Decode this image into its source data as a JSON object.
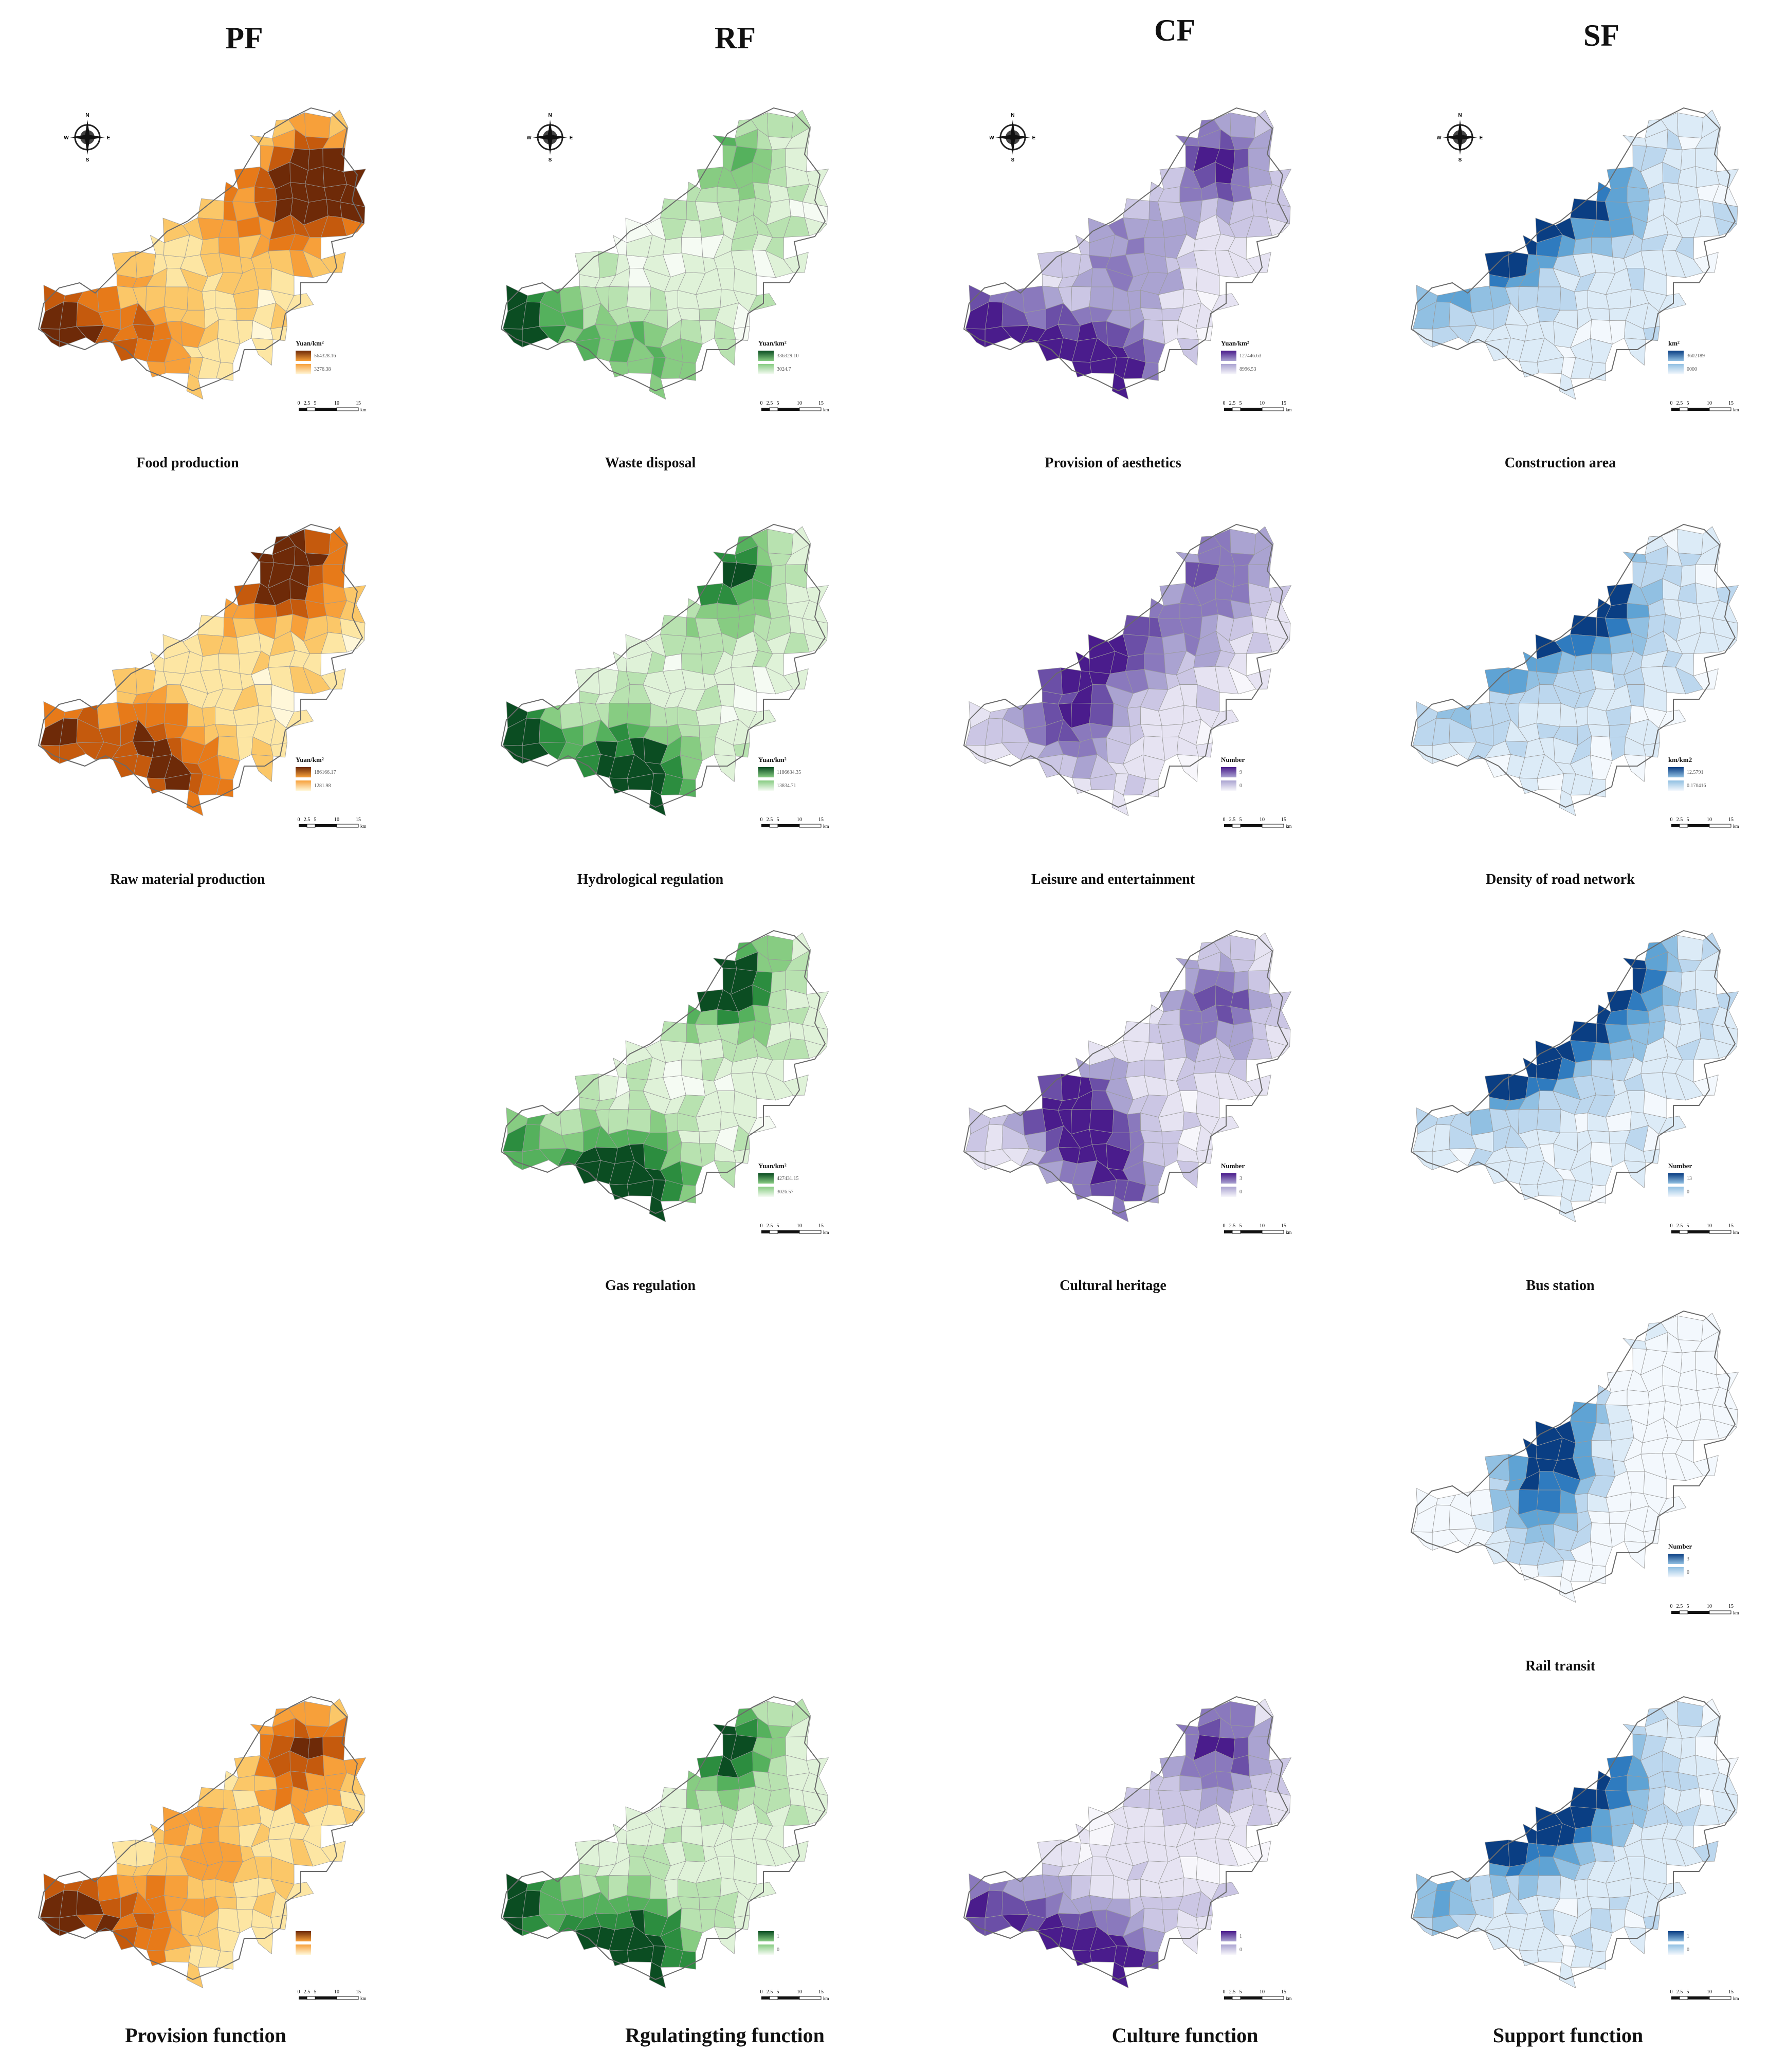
{
  "columns": [
    {
      "id": "pf",
      "label": "PF",
      "x": 0
    },
    {
      "id": "rf",
      "label": "RF",
      "x": 0
    },
    {
      "id": "cf",
      "label": "CF",
      "x": 0
    },
    {
      "id": "sf",
      "label": "SF",
      "x": 0
    }
  ],
  "palettes": {
    "pf": [
      "#fff7d9",
      "#fde6a3",
      "#fbc768",
      "#f7a03a",
      "#e77a19",
      "#c55a0d",
      "#6e2a08"
    ],
    "rf": [
      "#f5fbf3",
      "#dff2d8",
      "#b8e2b0",
      "#87cc82",
      "#55b15d",
      "#2c8d3f",
      "#0b4d22"
    ],
    "cf": [
      "#f7f6fb",
      "#e6e3f2",
      "#cbc6e4",
      "#aaa3d1",
      "#8a79bd",
      "#6b4fa7",
      "#4a1c8c"
    ],
    "sf": [
      "#f3f8fd",
      "#dcebf7",
      "#bcd7ee",
      "#91c0e2",
      "#5fa3d4",
      "#2f7bbf",
      "#0a3e83"
    ]
  },
  "panels": [
    {
      "id": "pf-food",
      "col": "pf",
      "row": 0,
      "caption": "Food production",
      "unit": "Yuan/km²",
      "max": "564328.16",
      "min": "3276.38",
      "compass": true
    },
    {
      "id": "pf-raw",
      "col": "pf",
      "row": 1,
      "caption": "Raw material production",
      "unit": "Yuan/km²",
      "max": "186166.17",
      "min": "1281.98",
      "compass": false
    },
    {
      "id": "pf-all",
      "col": "pf",
      "row": 4,
      "caption": "",
      "unit": "",
      "max": "",
      "min": "",
      "compass": false
    },
    {
      "id": "rf-waste",
      "col": "rf",
      "row": 0,
      "caption": "Waste disposal",
      "unit": "Yuan/km²",
      "max": "336329.10",
      "min": "3024.7",
      "compass": true
    },
    {
      "id": "rf-hydro",
      "col": "rf",
      "row": 1,
      "caption": "Hydrological regulation",
      "unit": "Yuan/km²",
      "max": "1186634.35",
      "min": "13834.71",
      "compass": false
    },
    {
      "id": "rf-gas",
      "col": "rf",
      "row": 2,
      "caption": "Gas regulation",
      "unit": "Yuan/km²",
      "max": "427431.15",
      "min": "3026.57",
      "compass": false
    },
    {
      "id": "rf-all",
      "col": "rf",
      "row": 4,
      "caption": "",
      "unit": "",
      "max": "1",
      "min": "0",
      "compass": false
    },
    {
      "id": "cf-aes",
      "col": "cf",
      "row": 0,
      "caption": "Provision of aesthetics",
      "unit": "Yuan/km²",
      "max": "127446.63",
      "min": "8996.53",
      "compass": true
    },
    {
      "id": "cf-leisure",
      "col": "cf",
      "row": 1,
      "caption": "Leisure and entertainment",
      "unit": "Number",
      "max": "9",
      "min": "0",
      "compass": false
    },
    {
      "id": "cf-heritage",
      "col": "cf",
      "row": 2,
      "caption": "Cultural heritage",
      "unit": "Number",
      "max": "3",
      "min": "0",
      "compass": false
    },
    {
      "id": "cf-all",
      "col": "cf",
      "row": 4,
      "caption": "",
      "unit": "",
      "max": "1",
      "min": "0",
      "compass": false
    },
    {
      "id": "sf-constr",
      "col": "sf",
      "row": 0,
      "caption": "Construction area",
      "unit": "km²",
      "max": "3602189",
      "min": "0000",
      "compass": true
    },
    {
      "id": "sf-road",
      "col": "sf",
      "row": 1,
      "caption": "Density of road network",
      "unit": "km/km2",
      "max": "12.5791",
      "min": "0.170416",
      "compass": false
    },
    {
      "id": "sf-bus",
      "col": "sf",
      "row": 2,
      "caption": "Bus station",
      "unit": "Number",
      "max": "13",
      "min": "0",
      "compass": false
    },
    {
      "id": "sf-rail",
      "col": "sf",
      "row": 3,
      "caption": "Rail transit",
      "unit": "Number",
      "max": "3",
      "min": "0",
      "compass": false
    },
    {
      "id": "sf-all",
      "col": "sf",
      "row": 4,
      "caption": "",
      "unit": "",
      "max": "1",
      "min": "0",
      "compass": false
    }
  ],
  "summary": {
    "pf": "Provision function",
    "rf": "Rgulatingting function",
    "cf": "Culture function",
    "sf": "Support function"
  },
  "scale_labels": [
    "0",
    "2.5",
    "5",
    "10",
    "15"
  ],
  "scale_unit": "km",
  "compass_letters": {
    "n": "N",
    "s": "S",
    "e": "E",
    "w": "W"
  }
}
